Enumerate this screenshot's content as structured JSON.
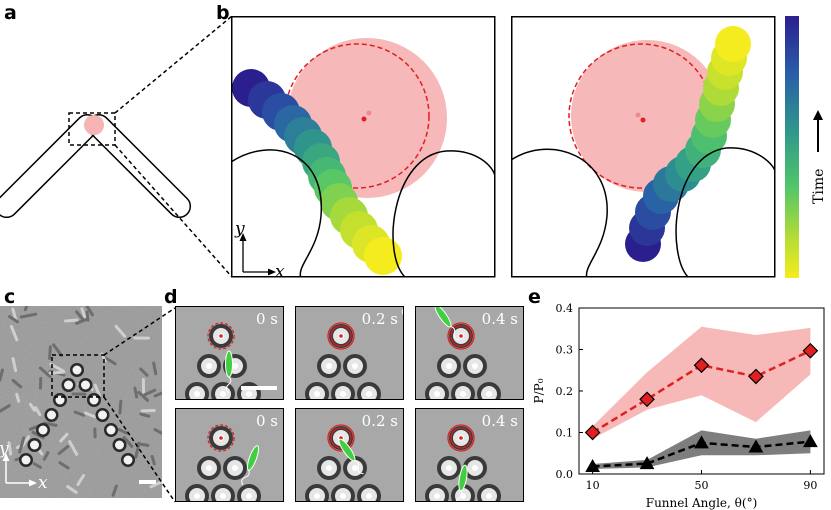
{
  "panel_labels": {
    "a": "a",
    "b": "b",
    "c": "c",
    "d": "d",
    "e": "e"
  },
  "panel_b": {
    "axis_y": "y",
    "axis_x": "x",
    "colorbar_label": "Time",
    "colorbar_colors": [
      "#2b1f8f",
      "#2a5ea8",
      "#2f9a8a",
      "#52c56a",
      "#b5dd33",
      "#f5ec1f"
    ],
    "trap_color": "#f6b4b4",
    "trap_ring_color": "#e02020"
  },
  "panel_c": {
    "axis_y": "y",
    "axis_x": "x"
  },
  "panel_d": {
    "top_times": [
      "0 s",
      "0.2 s",
      "0.4 s"
    ],
    "bottom_times": [
      "0 s",
      "0.2 s",
      "0.4 s"
    ]
  },
  "chart_data": {
    "type": "line",
    "xlabel": "Funnel Angle, θ(°)",
    "ylabel": "P/P₀",
    "xlim": [
      5,
      95
    ],
    "ylim": [
      0,
      0.4
    ],
    "xticks": [
      10,
      50,
      90
    ],
    "yticks": [
      0.0,
      0.1,
      0.2,
      0.3,
      0.4
    ],
    "ytick_labels": [
      "0.0",
      "0.1",
      "0.2",
      "0.3",
      "0.4"
    ],
    "x": [
      10,
      30,
      50,
      70,
      90
    ],
    "series": [
      {
        "marker": "diamond",
        "color": "#e02020",
        "band_color": "#f4a0a0",
        "values": [
          0.1,
          0.18,
          0.262,
          0.235,
          0.297
        ],
        "lower": [
          0.085,
          0.155,
          0.19,
          0.125,
          0.24
        ],
        "upper": [
          0.115,
          0.245,
          0.355,
          0.335,
          0.352
        ]
      },
      {
        "marker": "triangle",
        "color": "#000000",
        "band_color": "#707070",
        "values": [
          0.018,
          0.025,
          0.075,
          0.065,
          0.078
        ],
        "lower": [
          0.012,
          0.016,
          0.045,
          0.045,
          0.05
        ],
        "upper": [
          0.024,
          0.034,
          0.105,
          0.085,
          0.105
        ]
      }
    ]
  }
}
